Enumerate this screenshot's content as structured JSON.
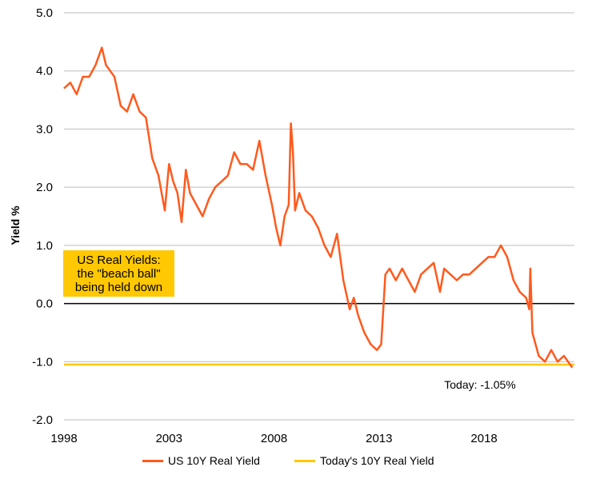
{
  "chart_data": {
    "type": "line",
    "ylabel": "Yield %",
    "xlabel": "",
    "xlim": [
      1998,
      2022.3
    ],
    "ylim": [
      -2.0,
      5.0
    ],
    "x_ticks": [
      "1998",
      "2003",
      "2008",
      "2013",
      "2018"
    ],
    "y_ticks": [
      "5.0",
      "4.0",
      "3.0",
      "2.0",
      "1.0",
      "0.0",
      "-1.0",
      "-2.0"
    ],
    "grid": "horizontal",
    "legend_placement": "bottom",
    "callout": [
      "US Real Yields:",
      "the \"beach ball\"",
      "being held down"
    ],
    "annotation": "Today: -1.05%",
    "series": [
      {
        "name": "US 10Y Real Yield",
        "color": "#ff5a1e",
        "x": [
          1998.0,
          1998.3,
          1998.6,
          1998.9,
          1999.2,
          1999.5,
          1999.8,
          2000.0,
          2000.2,
          2000.4,
          2000.7,
          2001.0,
          2001.3,
          2001.6,
          2001.9,
          2002.2,
          2002.5,
          2002.8,
          2003.0,
          2003.2,
          2003.4,
          2003.6,
          2003.8,
          2004.0,
          2004.3,
          2004.6,
          2004.9,
          2005.2,
          2005.5,
          2005.8,
          2006.1,
          2006.4,
          2006.7,
          2007.0,
          2007.3,
          2007.6,
          2007.9,
          2008.1,
          2008.3,
          2008.5,
          2008.7,
          2008.8,
          2008.9,
          2009.0,
          2009.2,
          2009.5,
          2009.8,
          2010.1,
          2010.4,
          2010.7,
          2011.0,
          2011.3,
          2011.6,
          2011.8,
          2012.0,
          2012.3,
          2012.6,
          2012.9,
          2013.1,
          2013.3,
          2013.5,
          2013.8,
          2014.1,
          2014.4,
          2014.7,
          2015.0,
          2015.3,
          2015.6,
          2015.9,
          2016.1,
          2016.4,
          2016.7,
          2017.0,
          2017.3,
          2017.6,
          2017.9,
          2018.2,
          2018.5,
          2018.8,
          2019.1,
          2019.4,
          2019.7,
          2020.0,
          2020.15,
          2020.2,
          2020.3,
          2020.6,
          2020.9,
          2021.2,
          2021.5,
          2021.8,
          2022.0,
          2022.2
        ],
        "y": [
          3.7,
          3.8,
          3.6,
          3.9,
          3.9,
          4.1,
          4.4,
          4.1,
          4.0,
          3.9,
          3.4,
          3.3,
          3.6,
          3.3,
          3.2,
          2.5,
          2.2,
          1.6,
          2.4,
          2.1,
          1.9,
          1.4,
          2.3,
          1.9,
          1.7,
          1.5,
          1.8,
          2.0,
          2.1,
          2.2,
          2.6,
          2.4,
          2.4,
          2.3,
          2.8,
          2.2,
          1.7,
          1.3,
          1.0,
          1.5,
          1.7,
          3.1,
          2.6,
          1.6,
          1.9,
          1.6,
          1.5,
          1.3,
          1.0,
          0.8,
          1.2,
          0.4,
          -0.1,
          0.1,
          -0.2,
          -0.5,
          -0.7,
          -0.8,
          -0.7,
          0.5,
          0.6,
          0.4,
          0.6,
          0.4,
          0.2,
          0.5,
          0.6,
          0.7,
          0.2,
          0.6,
          0.5,
          0.4,
          0.5,
          0.5,
          0.6,
          0.7,
          0.8,
          0.8,
          1.0,
          0.8,
          0.4,
          0.2,
          0.1,
          -0.1,
          0.6,
          -0.5,
          -0.9,
          -1.0,
          -0.8,
          -1.0,
          -0.9,
          -1.0,
          -1.1
        ]
      },
      {
        "name": "Today's 10Y Real Yield",
        "color": "#ffc800",
        "x": [
          1998.0,
          2022.3
        ],
        "y": [
          -1.05,
          -1.05
        ]
      }
    ]
  }
}
